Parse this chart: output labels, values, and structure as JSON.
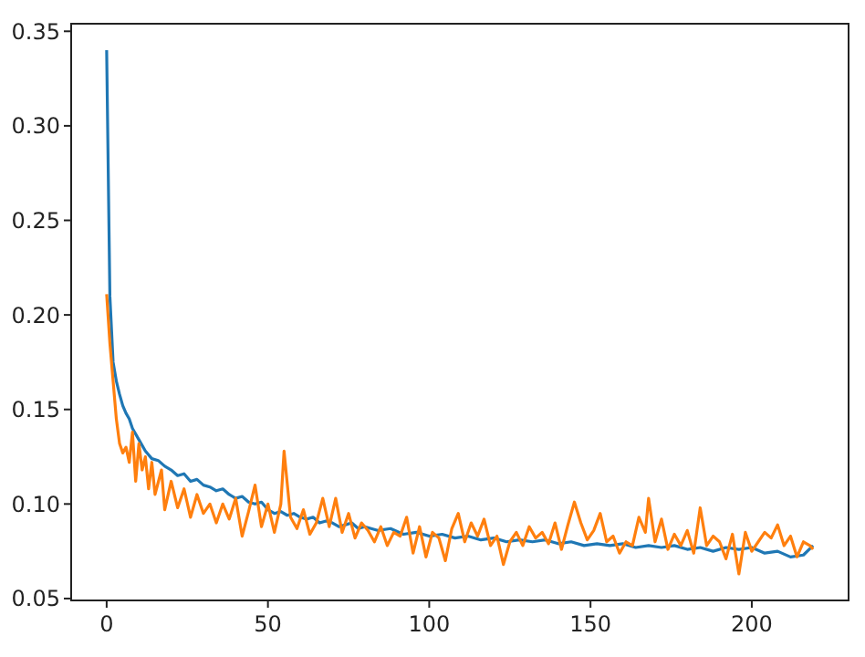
{
  "chart_data": {
    "type": "line",
    "xlim": [
      -11,
      230
    ],
    "ylim": [
      0.049,
      0.354
    ],
    "xticks": [
      0,
      50,
      100,
      150,
      200
    ],
    "yticks": [
      {
        "value": 0.05,
        "label": "0.05"
      },
      {
        "value": 0.1,
        "label": "0.10"
      },
      {
        "value": 0.15,
        "label": "0.15"
      },
      {
        "value": 0.2,
        "label": "0.20"
      },
      {
        "value": 0.25,
        "label": "0.25"
      },
      {
        "value": 0.3,
        "label": "0.30"
      },
      {
        "value": 0.35,
        "label": "0.35"
      }
    ],
    "grid": false,
    "series": [
      {
        "color": "#1f77b4",
        "x": [
          0,
          1,
          2,
          3,
          4,
          5,
          6,
          7,
          8,
          10,
          12,
          14,
          16,
          18,
          20,
          22,
          24,
          26,
          28,
          30,
          32,
          34,
          36,
          38,
          40,
          42,
          44,
          46,
          48,
          50,
          52,
          54,
          56,
          58,
          60,
          62,
          64,
          66,
          68,
          70,
          72,
          74,
          76,
          78,
          80,
          84,
          88,
          92,
          96,
          100,
          104,
          108,
          112,
          116,
          120,
          124,
          128,
          132,
          136,
          140,
          144,
          148,
          152,
          156,
          160,
          164,
          168,
          172,
          176,
          180,
          184,
          188,
          192,
          196,
          200,
          204,
          208,
          212,
          216,
          219
        ],
        "values": [
          0.34,
          0.21,
          0.175,
          0.165,
          0.158,
          0.152,
          0.148,
          0.145,
          0.14,
          0.134,
          0.128,
          0.124,
          0.123,
          0.12,
          0.118,
          0.115,
          0.116,
          0.112,
          0.113,
          0.11,
          0.109,
          0.107,
          0.108,
          0.105,
          0.103,
          0.104,
          0.101,
          0.1,
          0.101,
          0.097,
          0.095,
          0.096,
          0.094,
          0.095,
          0.093,
          0.092,
          0.093,
          0.09,
          0.091,
          0.09,
          0.088,
          0.089,
          0.09,
          0.087,
          0.088,
          0.086,
          0.087,
          0.084,
          0.085,
          0.083,
          0.084,
          0.082,
          0.083,
          0.081,
          0.082,
          0.08,
          0.081,
          0.08,
          0.081,
          0.079,
          0.08,
          0.078,
          0.079,
          0.078,
          0.079,
          0.077,
          0.078,
          0.077,
          0.078,
          0.076,
          0.077,
          0.075,
          0.077,
          0.076,
          0.077,
          0.074,
          0.075,
          0.072,
          0.073,
          0.078
        ]
      },
      {
        "color": "#ff7f0e",
        "x": [
          0,
          1,
          2,
          3,
          4,
          5,
          6,
          7,
          8,
          9,
          10,
          11,
          12,
          13,
          14,
          15,
          17,
          18,
          20,
          22,
          24,
          26,
          28,
          30,
          32,
          34,
          36,
          38,
          40,
          42,
          44,
          46,
          48,
          50,
          52,
          54,
          55,
          57,
          59,
          61,
          63,
          65,
          67,
          69,
          71,
          73,
          75,
          77,
          79,
          81,
          83,
          85,
          87,
          89,
          91,
          93,
          95,
          97,
          99,
          101,
          103,
          105,
          107,
          109,
          111,
          113,
          115,
          117,
          119,
          121,
          123,
          125,
          127,
          129,
          131,
          133,
          135,
          137,
          139,
          141,
          143,
          145,
          147,
          149,
          151,
          153,
          155,
          157,
          159,
          161,
          163,
          165,
          167,
          168,
          170,
          172,
          174,
          176,
          178,
          180,
          182,
          184,
          186,
          188,
          190,
          192,
          194,
          196,
          198,
          200,
          202,
          204,
          206,
          208,
          210,
          212,
          214,
          216,
          218,
          219
        ],
        "values": [
          0.211,
          0.185,
          0.165,
          0.145,
          0.132,
          0.127,
          0.13,
          0.122,
          0.138,
          0.112,
          0.132,
          0.118,
          0.125,
          0.108,
          0.122,
          0.105,
          0.118,
          0.097,
          0.112,
          0.098,
          0.108,
          0.093,
          0.105,
          0.095,
          0.1,
          0.09,
          0.1,
          0.092,
          0.103,
          0.083,
          0.096,
          0.11,
          0.088,
          0.1,
          0.085,
          0.1,
          0.128,
          0.093,
          0.087,
          0.097,
          0.084,
          0.09,
          0.103,
          0.088,
          0.103,
          0.085,
          0.095,
          0.082,
          0.09,
          0.086,
          0.08,
          0.088,
          0.078,
          0.085,
          0.083,
          0.093,
          0.074,
          0.088,
          0.072,
          0.085,
          0.082,
          0.07,
          0.087,
          0.095,
          0.08,
          0.09,
          0.083,
          0.092,
          0.078,
          0.083,
          0.068,
          0.08,
          0.085,
          0.078,
          0.088,
          0.082,
          0.085,
          0.079,
          0.09,
          0.076,
          0.089,
          0.101,
          0.09,
          0.081,
          0.086,
          0.095,
          0.08,
          0.083,
          0.074,
          0.08,
          0.078,
          0.093,
          0.085,
          0.103,
          0.08,
          0.092,
          0.076,
          0.084,
          0.078,
          0.086,
          0.074,
          0.098,
          0.078,
          0.083,
          0.08,
          0.071,
          0.084,
          0.063,
          0.085,
          0.075,
          0.08,
          0.085,
          0.082,
          0.089,
          0.078,
          0.083,
          0.072,
          0.08,
          0.078,
          0.076
        ]
      }
    ]
  }
}
